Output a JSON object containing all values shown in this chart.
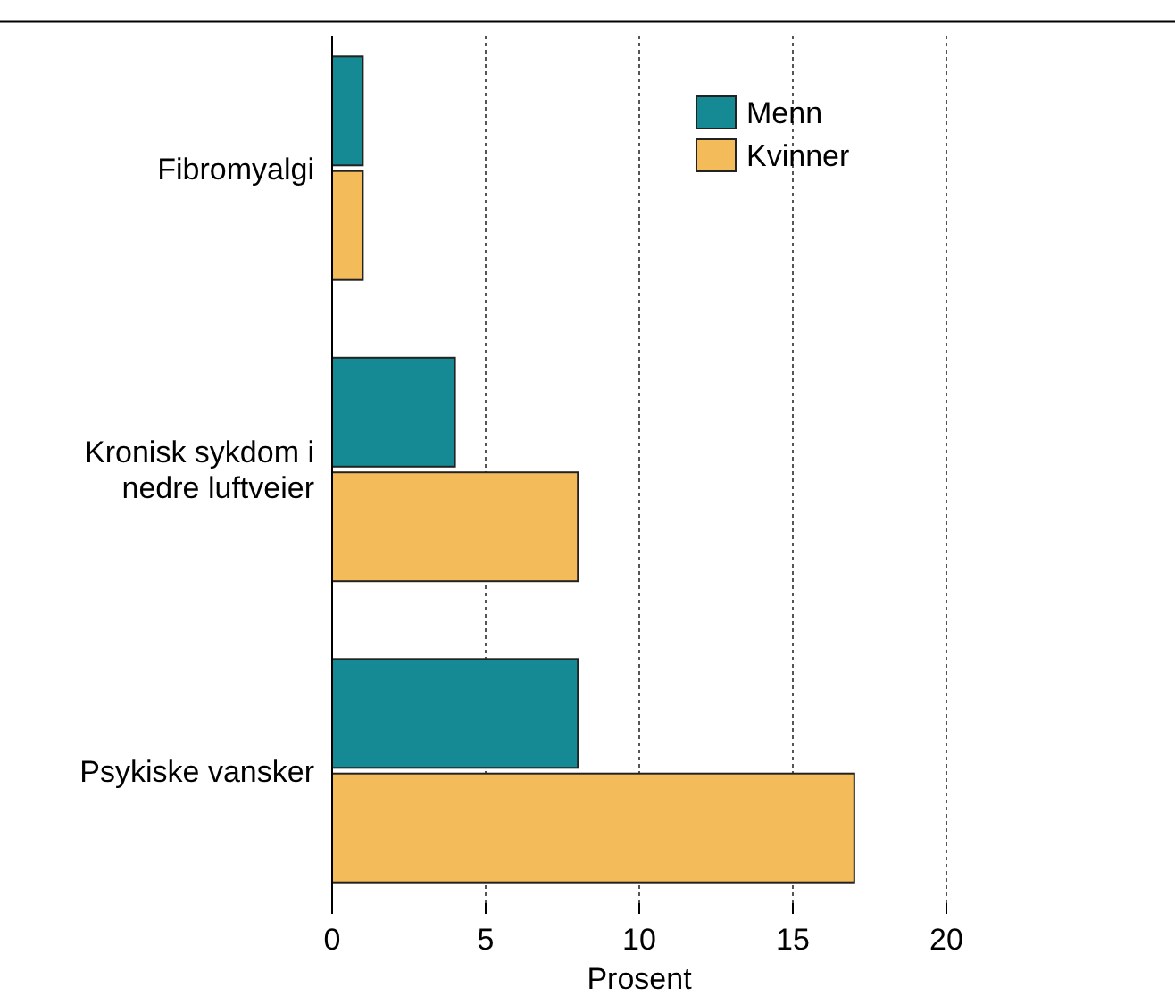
{
  "chart_data": {
    "type": "bar",
    "orientation": "horizontal",
    "xlabel": "Prosent",
    "categories": [
      "Fibromyalgi",
      "Kronisk sykdom i nedre luftveier",
      "Psykiske vansker"
    ],
    "series": [
      {
        "name": "Menn",
        "color": "#168a94",
        "values": [
          1,
          4,
          8
        ]
      },
      {
        "name": "Kvinner",
        "color": "#f4bb5a",
        "values": [
          1,
          8,
          17
        ]
      }
    ],
    "xlim": [
      0,
      20
    ],
    "xticks": [
      0,
      5,
      10,
      15,
      20
    ],
    "grid": "x",
    "legend": "top right"
  }
}
